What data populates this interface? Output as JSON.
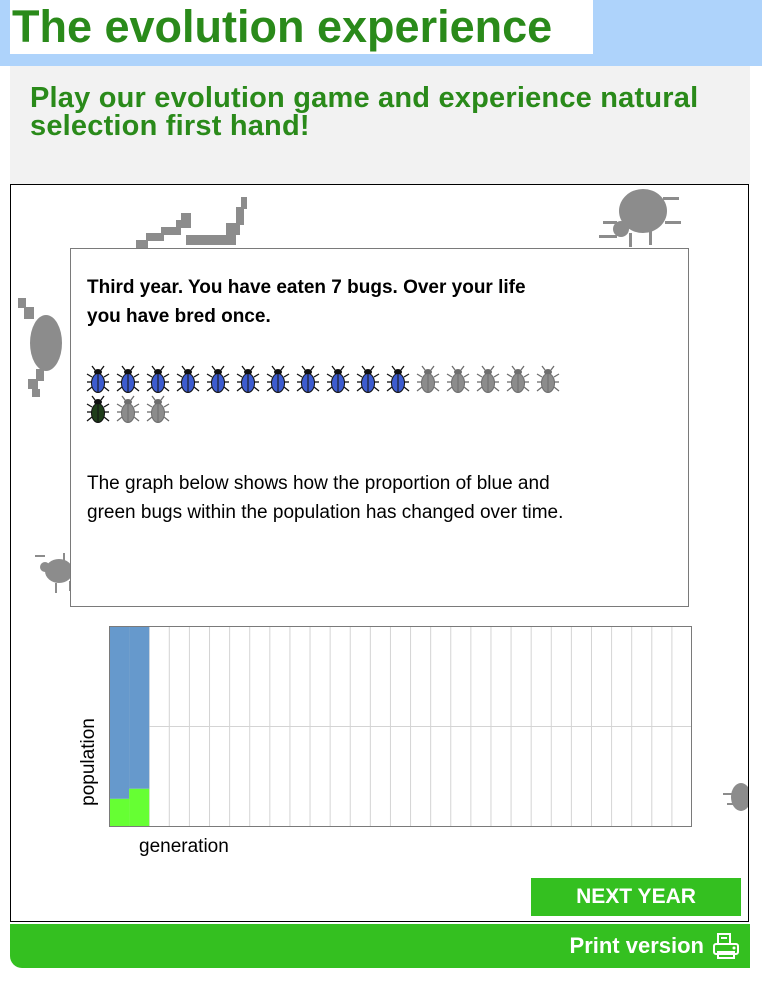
{
  "page": {
    "title": "The evolution experience",
    "intro": "Play our evolution game and experience natural selection first hand!"
  },
  "panel": {
    "heading": "Third year. You have eaten 7 bugs. Over your life you have bred once.",
    "description": "The graph below shows how the proportion of blue and green bugs within the population has changed over time.",
    "bugs": [
      "blue",
      "blue",
      "blue",
      "blue",
      "blue",
      "blue",
      "blue",
      "blue",
      "blue",
      "blue",
      "blue",
      "grey",
      "grey",
      "grey",
      "grey",
      "grey",
      "green",
      "grey",
      "grey"
    ]
  },
  "colors": {
    "title_green": "#2a8a1a",
    "button_green": "#34c020",
    "bug_blue": "#3d5ccf",
    "bug_green": "#1f3d1a",
    "bug_grey": "#8c8c8c",
    "chart_blue": "#6699cc",
    "chart_green": "#66ff33",
    "title_band": "#aed3fb"
  },
  "chart_data": {
    "type": "area",
    "xlabel": "generation",
    "ylabel": "population",
    "generations_total": 29,
    "series": [
      {
        "name": "blue",
        "values": [
          0.86,
          0.81
        ]
      },
      {
        "name": "green",
        "values": [
          0.14,
          0.19
        ]
      }
    ],
    "ylim": [
      0,
      1
    ],
    "grid": true
  },
  "controls": {
    "next_label": "NEXT YEAR"
  },
  "footer": {
    "print_label": "Print version",
    "print_icon": "printer-icon"
  }
}
